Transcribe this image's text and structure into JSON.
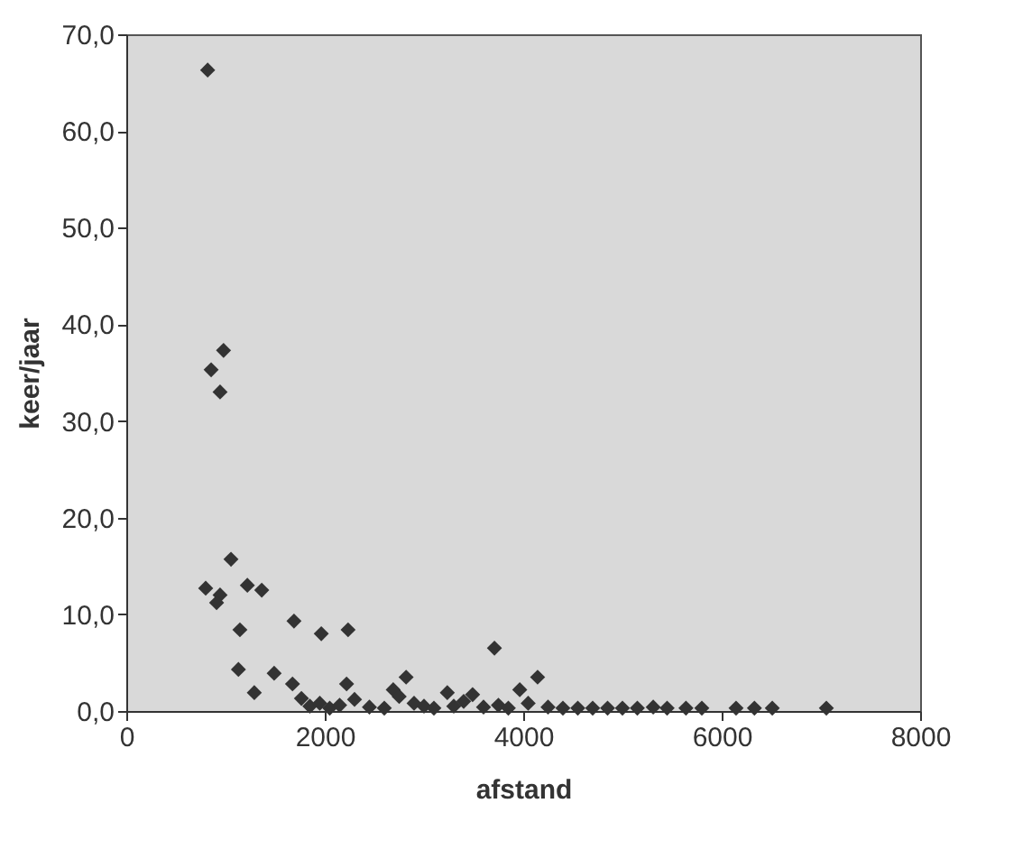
{
  "chart_data": {
    "type": "scatter",
    "xlabel": "afstand",
    "ylabel": "keer/jaar",
    "x": [
      820,
      980,
      855,
      945,
      1055,
      800,
      945,
      1220,
      1365,
      910,
      1145,
      1690,
      1965,
      2235,
      3710,
      1130,
      1490,
      1290,
      1675,
      1765,
      2820,
      2690,
      2220,
      3235,
      3490,
      4145,
      3965,
      1850,
      1950,
      2050,
      2150,
      2300,
      2450,
      2600,
      2750,
      2900,
      3000,
      3100,
      3300,
      3400,
      3600,
      3750,
      3850,
      4050,
      4250,
      4400,
      4550,
      4700,
      4850,
      5000,
      5150,
      5310,
      5450,
      5640,
      5800,
      6145,
      6330,
      6510,
      7055
    ],
    "values": [
      66.3,
      37.3,
      35.3,
      33,
      15.7,
      12.7,
      12,
      13,
      12.5,
      11.2,
      8.4,
      9.3,
      8,
      8.4,
      6.5,
      4.3,
      3.9,
      1.9,
      2.8,
      1.3,
      3.5,
      2.2,
      2.8,
      1.9,
      1.7,
      3.5,
      2.2,
      0.5,
      0.8,
      0.3,
      0.6,
      1.2,
      0.4,
      0.3,
      1.5,
      0.8,
      0.5,
      0.3,
      0.5,
      1,
      0.4,
      0.6,
      0.3,
      0.8,
      0.4,
      0.3,
      0.3,
      0.3,
      0.3,
      0.3,
      0.3,
      0.4,
      0.3,
      0.3,
      0.3,
      0.3,
      0.3,
      0.3,
      0.3
    ],
    "color": "#333333",
    "marker": "diamond",
    "xlim": [
      0,
      8000
    ],
    "xticks": [
      0,
      2000,
      4000,
      6000,
      8000
    ],
    "ylim": [
      0,
      70
    ],
    "yticks": [
      {
        "value": 0,
        "label": "0,0"
      },
      {
        "value": 10,
        "label": "10,0"
      },
      {
        "value": 20,
        "label": "20,0"
      },
      {
        "value": 30,
        "label": "30,0"
      },
      {
        "value": 40,
        "label": "40,0"
      },
      {
        "value": 50,
        "label": "50,0"
      },
      {
        "value": 60,
        "label": "60,0"
      },
      {
        "value": 70,
        "label": "70,0"
      }
    ],
    "grid": false
  }
}
